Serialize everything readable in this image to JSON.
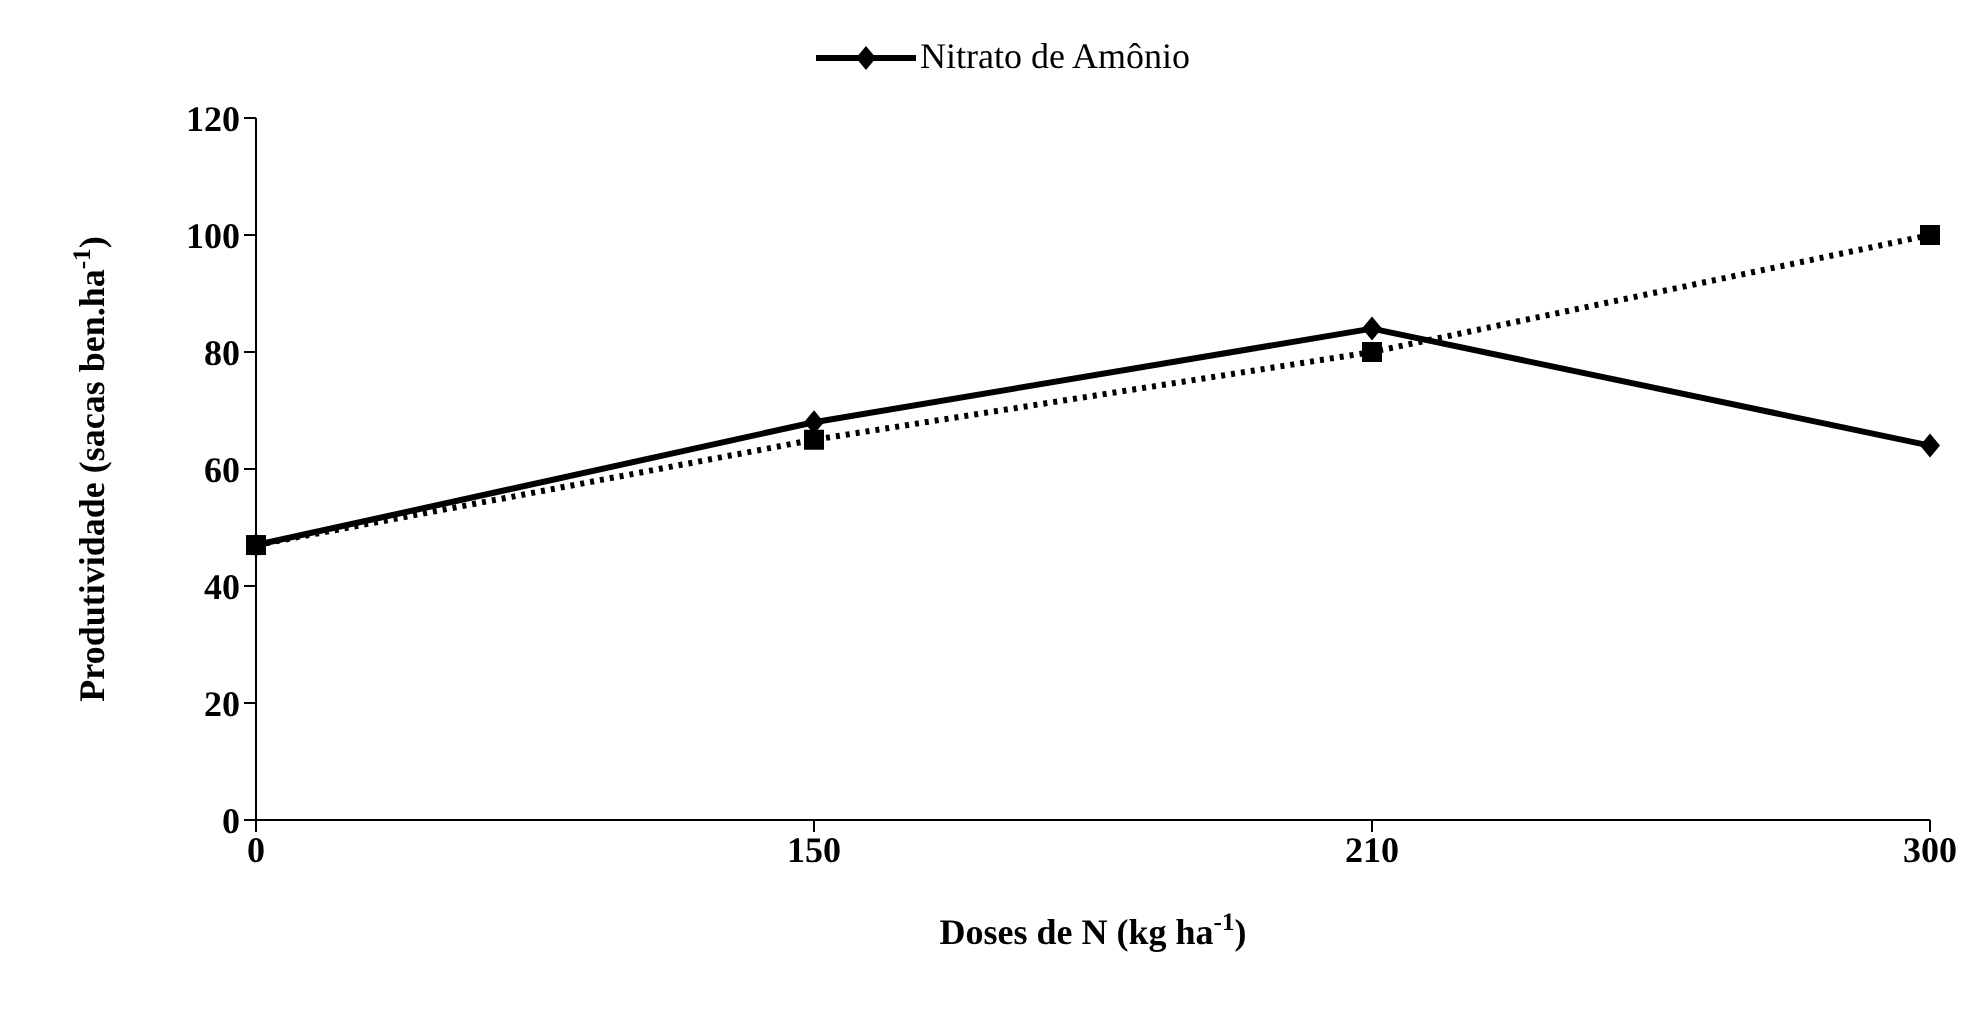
{
  "chart_data": {
    "type": "line",
    "xlabel": "Doses de N (kg ha$^{-1}$)",
    "ylabel": "Produtividade (sacas ben.ha$^{-1}$)",
    "categories": [
      "0",
      "150",
      "210",
      "300"
    ],
    "series": [
      {
        "name": "Nitrato de Amônio",
        "color": "#000000",
        "values": [
          47,
          68,
          84,
          64
        ],
        "marker": "diamond",
        "line_style": "solid"
      },
      {
        "color": "#000000",
        "values": [
          47,
          65,
          80,
          100
        ],
        "marker": "square",
        "line_style": "dotted"
      }
    ],
    "ylim": [
      0,
      120
    ],
    "yticks": [
      0,
      20,
      40,
      60,
      80,
      100,
      120
    ],
    "grid": false,
    "legend": "top"
  }
}
